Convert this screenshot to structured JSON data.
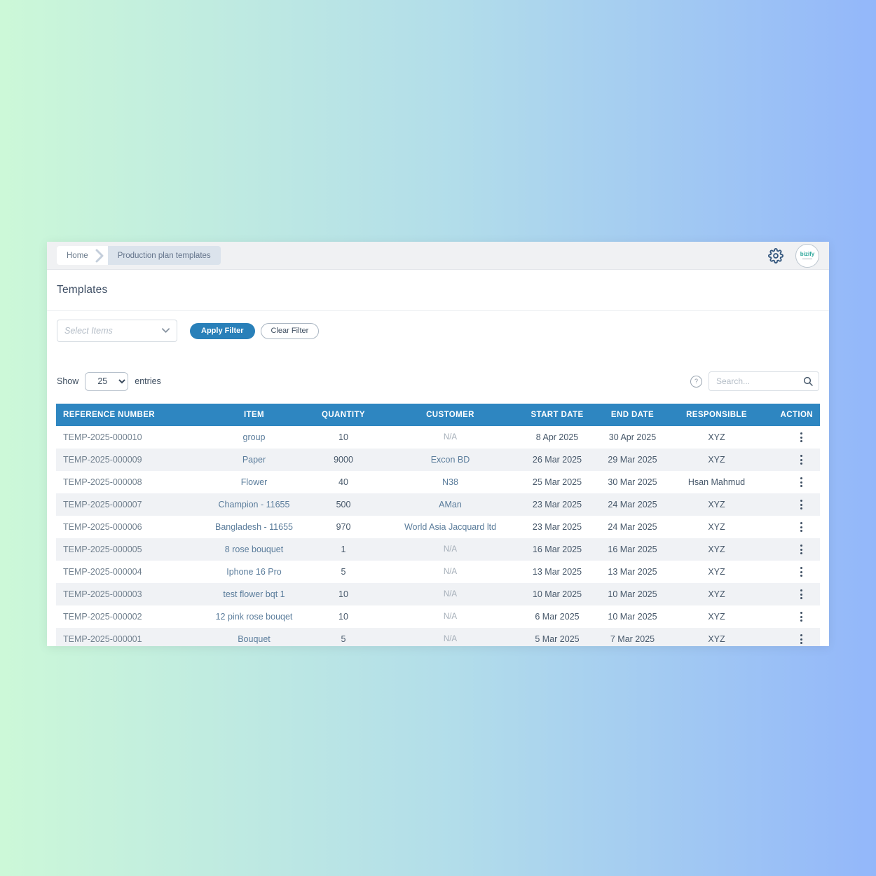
{
  "app": {
    "breadcrumb": {
      "home": "Home",
      "current": "Production plan templates"
    },
    "logo_text": "bizify",
    "page_title": "Templates"
  },
  "filters": {
    "select_items_placeholder": "Select Items",
    "apply_button": "Apply Filter",
    "clear_button": "Clear Filter"
  },
  "list_controls": {
    "show_label": "Show",
    "page_size": "25",
    "entries_label": "entries",
    "help_glyph": "?",
    "search_placeholder": "Search..."
  },
  "table": {
    "columns": [
      "REFERENCE NUMBER",
      "ITEM",
      "QUANTITY",
      "CUSTOMER",
      "START DATE",
      "END DATE",
      "RESPONSIBLE",
      "ACTION"
    ],
    "rows": [
      {
        "reference": "TEMP-2025-000010",
        "item": "group",
        "quantity": "10",
        "customer": "N/A",
        "start_date": "8 Apr 2025",
        "end_date": "30 Apr 2025",
        "responsible": "XYZ"
      },
      {
        "reference": "TEMP-2025-000009",
        "item": "Paper",
        "quantity": "9000",
        "customer": "Excon BD",
        "start_date": "26 Mar 2025",
        "end_date": "29 Mar 2025",
        "responsible": "XYZ"
      },
      {
        "reference": "TEMP-2025-000008",
        "item": "Flower",
        "quantity": "40",
        "customer": "N38",
        "start_date": "25 Mar 2025",
        "end_date": "30 Mar 2025",
        "responsible": "Hsan Mahmud"
      },
      {
        "reference": "TEMP-2025-000007",
        "item": "Champion - 11655",
        "quantity": "500",
        "customer": "AMan",
        "start_date": "23 Mar 2025",
        "end_date": "24 Mar 2025",
        "responsible": "XYZ"
      },
      {
        "reference": "TEMP-2025-000006",
        "item": "Bangladesh - 11655",
        "quantity": "970",
        "customer": "World Asia Jacquard ltd",
        "start_date": "23 Mar 2025",
        "end_date": "24 Mar 2025",
        "responsible": "XYZ"
      },
      {
        "reference": "TEMP-2025-000005",
        "item": "8 rose bouquet",
        "quantity": "1",
        "customer": "N/A",
        "start_date": "16 Mar 2025",
        "end_date": "16 Mar 2025",
        "responsible": "XYZ"
      },
      {
        "reference": "TEMP-2025-000004",
        "item": "Iphone 16 Pro",
        "quantity": "5",
        "customer": "N/A",
        "start_date": "13 Mar 2025",
        "end_date": "13 Mar 2025",
        "responsible": "XYZ"
      },
      {
        "reference": "TEMP-2025-000003",
        "item": "test flower bqt 1",
        "quantity": "10",
        "customer": "N/A",
        "start_date": "10 Mar 2025",
        "end_date": "10 Mar 2025",
        "responsible": "XYZ"
      },
      {
        "reference": "TEMP-2025-000002",
        "item": "12 pink rose bouqet",
        "quantity": "10",
        "customer": "N/A",
        "start_date": "6 Mar 2025",
        "end_date": "10 Mar 2025",
        "responsible": "XYZ"
      },
      {
        "reference": "TEMP-2025-000001",
        "item": "Bouquet",
        "quantity": "5",
        "customer": "N/A",
        "start_date": "5 Mar 2025",
        "end_date": "7 Mar 2025",
        "responsible": "XYZ"
      }
    ]
  },
  "icons": {
    "gear_icon": "⚙",
    "breadcrumb_chevron_icon": "›",
    "select_chevron_icon": "▾",
    "help_icon": "?",
    "search_icon": "⌕",
    "row_actions_icon": "⋮"
  },
  "colors": {
    "table_header_bg": "#2e86c1",
    "primary_button_bg": "#2980b9",
    "row_stripe_bg": "#f0f2f5",
    "link_text": "#5a7c9b",
    "muted_text": "#a4aeb8",
    "background_gradient_left": "#ccf8d8",
    "background_gradient_right": "#93b7fa"
  }
}
